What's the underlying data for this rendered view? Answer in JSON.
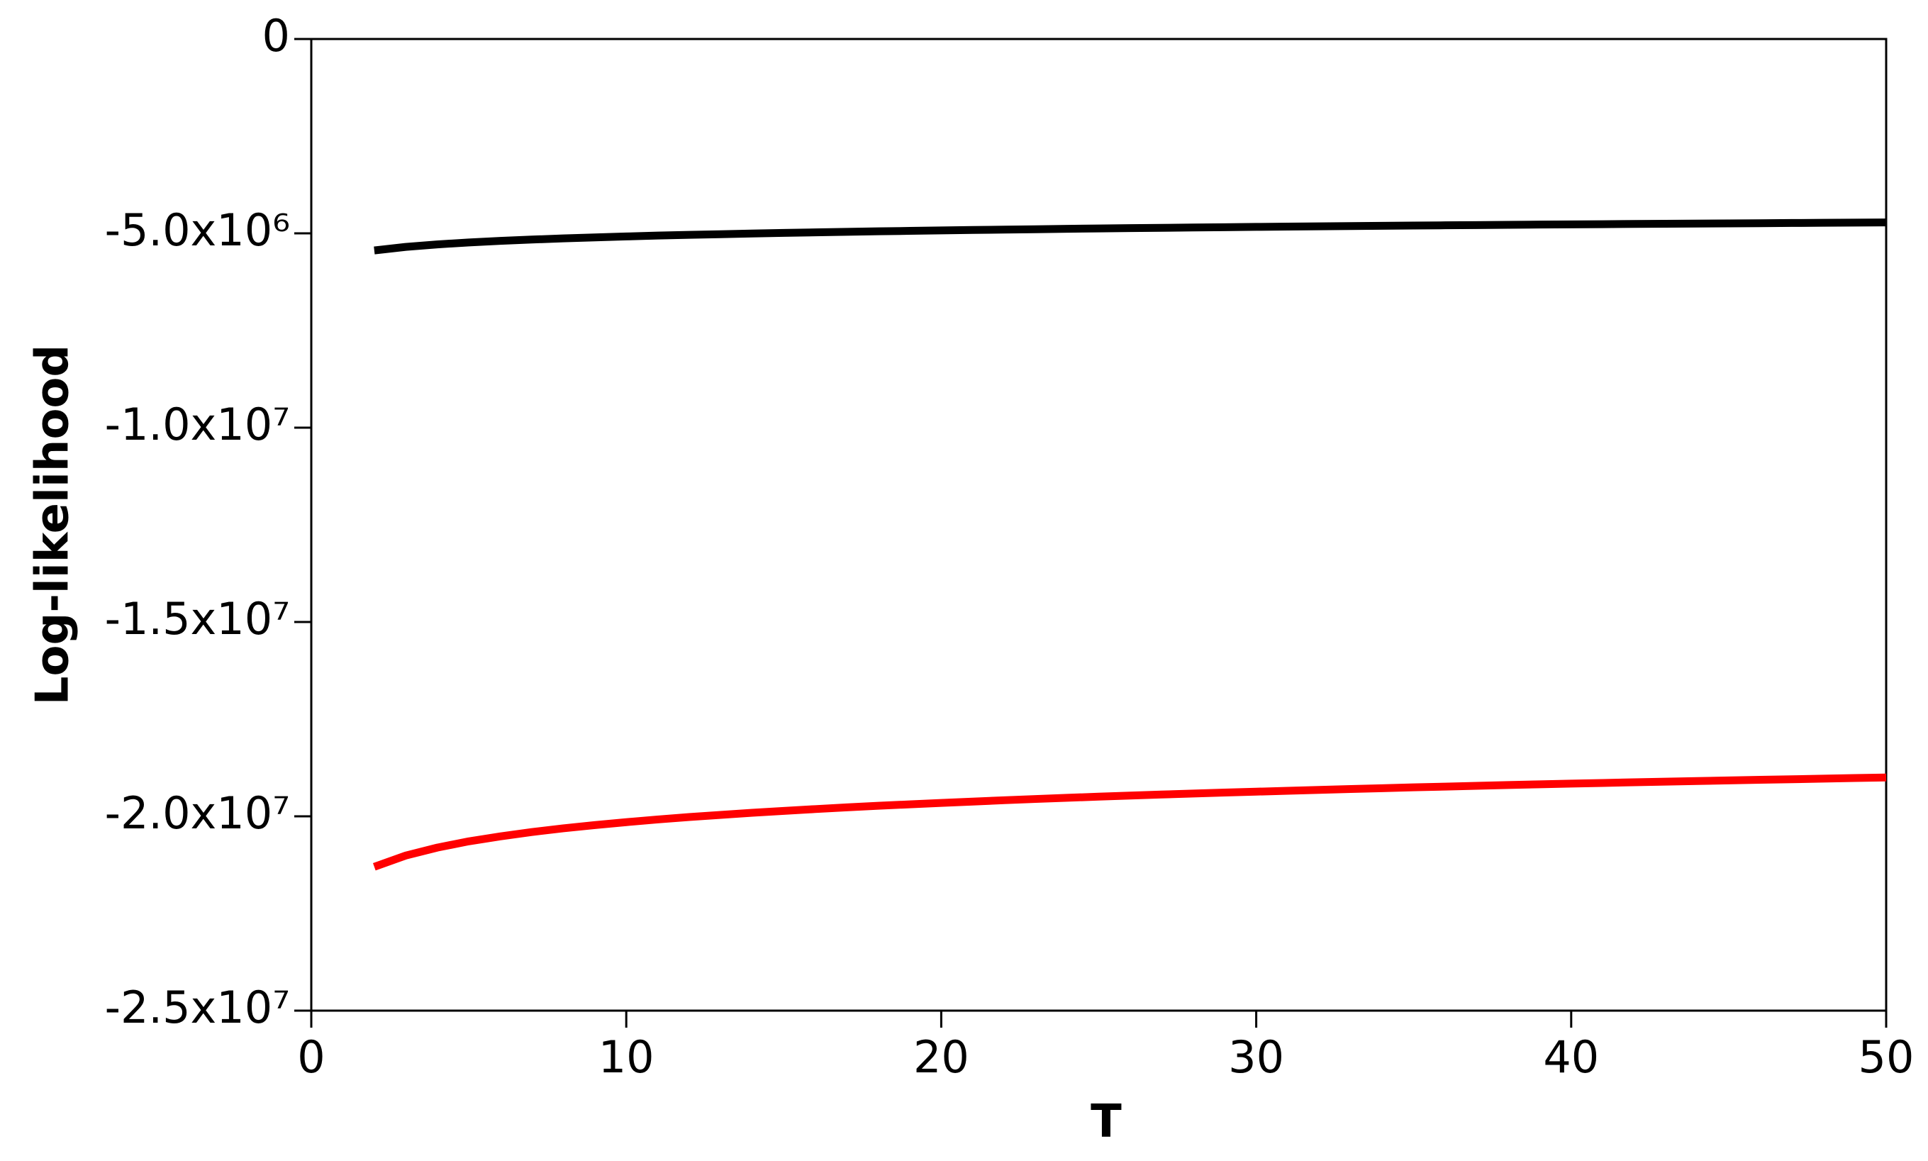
{
  "chart_data": {
    "type": "line",
    "x_label": "T",
    "y_label": "Log-likelihood",
    "x": [
      2,
      3,
      4,
      5,
      6,
      7,
      8,
      9,
      10,
      11,
      12,
      13,
      14,
      15,
      16,
      17,
      18,
      19,
      20,
      21,
      22,
      23,
      24,
      25,
      26,
      27,
      28,
      29,
      30,
      31,
      32,
      33,
      34,
      35,
      36,
      37,
      38,
      39,
      40,
      41,
      42,
      43,
      44,
      45,
      46,
      47,
      48,
      49,
      50
    ],
    "series": [
      {
        "color": "#000000",
        "values": [
          -5440000,
          -5349000,
          -5285000,
          -5235000,
          -5194000,
          -5160000,
          -5130000,
          -5104000,
          -5080000,
          -5058000,
          -5039000,
          -5022000,
          -5004000,
          -4989000,
          -4975000,
          -4961000,
          -4948000,
          -4937000,
          -4925000,
          -4914000,
          -4904000,
          -4894000,
          -4884000,
          -4875000,
          -4866000,
          -4858000,
          -4850000,
          -4842000,
          -4834000,
          -4827000,
          -4820000,
          -4813000,
          -4806000,
          -4800000,
          -4793000,
          -4788000,
          -4781000,
          -4775000,
          -4770000,
          -4765000,
          -4759000,
          -4754000,
          -4749000,
          -4744000,
          -4739000,
          -4734000,
          -4729000,
          -4724000,
          -4720000
        ]
      },
      {
        "color": "#ff0000",
        "values": [
          -21300000,
          -21010000,
          -20805000,
          -20644000,
          -20516000,
          -20405000,
          -20309000,
          -20226000,
          -20150000,
          -20081000,
          -20019000,
          -19964000,
          -19908000,
          -19860000,
          -19814000,
          -19770000,
          -19729000,
          -19692000,
          -19655000,
          -19621000,
          -19586000,
          -19554000,
          -19524000,
          -19494000,
          -19467000,
          -19439000,
          -19414000,
          -19389000,
          -19366000,
          -19343000,
          -19320000,
          -19297000,
          -19276000,
          -19255000,
          -19235000,
          -19216000,
          -19195000,
          -19177000,
          -19159000,
          -19143000,
          -19124000,
          -19108000,
          -19092000,
          -19076000,
          -19060000,
          -19046000,
          -19030000,
          -19014000,
          -19000000
        ]
      }
    ],
    "xlim": [
      0,
      50
    ],
    "xticks": [
      0,
      10,
      20,
      30,
      40,
      50
    ],
    "ylim": [
      -25000000,
      0
    ],
    "yticks": [
      {
        "value": -25000000,
        "label": "-2.5x10⁷"
      },
      {
        "value": -20000000,
        "label": "-2.0x10⁷"
      },
      {
        "value": -15000000,
        "label": "-1.5x10⁷"
      },
      {
        "value": -10000000,
        "label": "-1.0x10⁷"
      },
      {
        "value": -5000000,
        "label": "-5.0x10⁶"
      },
      0
    ]
  }
}
